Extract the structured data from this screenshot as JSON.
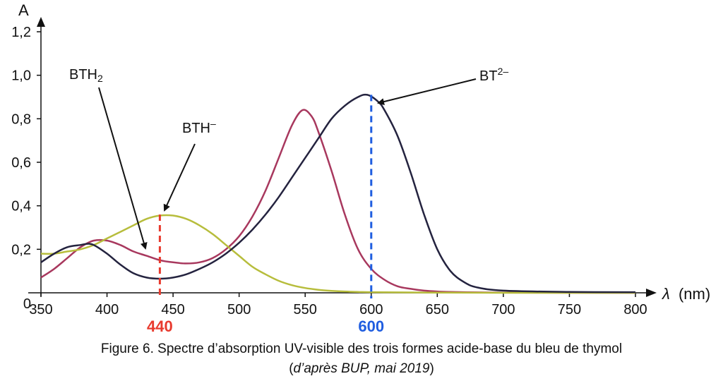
{
  "chart_data": {
    "type": "line",
    "xlabel_symbol": "λ",
    "xlabel_unit": "(nm)",
    "ylabel": "A",
    "xlim": [
      350,
      800
    ],
    "ylim": [
      0,
      1.2
    ],
    "x_ticks": [
      "350",
      "400",
      "450",
      "500",
      "550",
      "600",
      "650",
      "700",
      "750",
      "800"
    ],
    "y_ticks": [
      "0",
      "0,2",
      "0,4",
      "0,6",
      "0,8",
      "1,0",
      "1,2"
    ],
    "series": [
      {
        "name": "BTH2",
        "label_base": "BTH",
        "label_sub": "2",
        "color": "#a8385e",
        "x": [
          350,
          360,
          370,
          380,
          390,
          400,
          410,
          420,
          430,
          440,
          450,
          460,
          470,
          480,
          490,
          500,
          510,
          520,
          530,
          540,
          548,
          555,
          560,
          570,
          580,
          590,
          600,
          610,
          620,
          630,
          640,
          650,
          660,
          680,
          700,
          750,
          800
        ],
        "y": [
          0.07,
          0.11,
          0.16,
          0.21,
          0.24,
          0.24,
          0.22,
          0.19,
          0.17,
          0.15,
          0.14,
          0.135,
          0.14,
          0.16,
          0.2,
          0.26,
          0.35,
          0.47,
          0.62,
          0.77,
          0.84,
          0.81,
          0.74,
          0.56,
          0.36,
          0.2,
          0.11,
          0.06,
          0.03,
          0.018,
          0.01,
          0.006,
          0.004,
          0.002,
          0.001,
          0.0,
          0.0
        ]
      },
      {
        "name": "BTH−",
        "label_base": "BTH",
        "label_sup": "–",
        "color": "#b7bd3c",
        "x": [
          350,
          360,
          370,
          380,
          390,
          400,
          410,
          420,
          430,
          440,
          450,
          460,
          470,
          480,
          490,
          500,
          510,
          520,
          530,
          540,
          550,
          560,
          570,
          580,
          590,
          600,
          620,
          650,
          700,
          750,
          800
        ],
        "y": [
          0.18,
          0.18,
          0.19,
          0.2,
          0.22,
          0.25,
          0.28,
          0.31,
          0.34,
          0.355,
          0.355,
          0.34,
          0.31,
          0.27,
          0.22,
          0.17,
          0.12,
          0.085,
          0.055,
          0.035,
          0.022,
          0.014,
          0.009,
          0.006,
          0.004,
          0.003,
          0.002,
          0.001,
          0.0,
          0.0,
          0.0
        ]
      },
      {
        "name": "BT2−",
        "label_base": "BT",
        "label_sup": "2–",
        "color": "#24233f",
        "x": [
          350,
          360,
          370,
          380,
          385,
          390,
          400,
          410,
          420,
          430,
          440,
          450,
          460,
          470,
          480,
          490,
          500,
          510,
          520,
          530,
          540,
          550,
          560,
          570,
          580,
          590,
          597,
          605,
          610,
          620,
          630,
          640,
          650,
          660,
          670,
          680,
          700,
          750,
          800
        ],
        "y": [
          0.14,
          0.18,
          0.21,
          0.22,
          0.225,
          0.22,
          0.18,
          0.13,
          0.09,
          0.07,
          0.065,
          0.07,
          0.085,
          0.11,
          0.14,
          0.18,
          0.23,
          0.29,
          0.36,
          0.44,
          0.53,
          0.62,
          0.71,
          0.8,
          0.86,
          0.9,
          0.91,
          0.88,
          0.84,
          0.72,
          0.55,
          0.36,
          0.2,
          0.1,
          0.05,
          0.025,
          0.01,
          0.004,
          0.003
        ]
      }
    ],
    "markers": [
      {
        "label": "440",
        "x": 440,
        "y": 0.36,
        "color": "#e83a2e"
      },
      {
        "label": "600",
        "x": 600,
        "y": 0.91,
        "color": "#1f5de0"
      }
    ],
    "caption": {
      "line1": "Figure 6. Spectre d’absorption UV-visible des trois formes acide-base du bleu de thymol",
      "line2_open": "(",
      "line2_italic": "d’après BUP, mai 2019",
      "line2_close": ")"
    }
  }
}
